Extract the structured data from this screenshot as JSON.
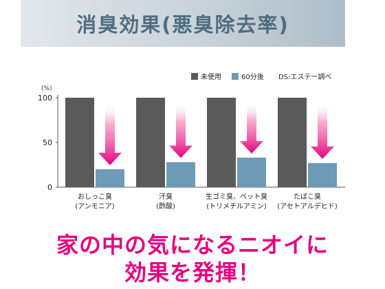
{
  "header": {
    "title": "消臭効果(悪臭除去率)"
  },
  "footer": {
    "line1": "家の中の気になるニオイに",
    "line2": "効果を発揮！"
  },
  "colors": {
    "before": "#5a5a5a",
    "after": "#6e9bb6",
    "arrow": "#e4007f",
    "header_text": "#4f6d80"
  },
  "chart_data": {
    "type": "bar",
    "unit_label": "(%)",
    "ylim": [
      0,
      100
    ],
    "yticks": [
      0,
      50,
      100
    ],
    "grid": false,
    "legend_position": "top-right",
    "note": "DS:エステー調べ",
    "categories": [
      [
        "おしっこ臭",
        "(アンモニア)"
      ],
      [
        "汗臭",
        "(酢酸)"
      ],
      [
        "生ゴミ臭、ペット臭",
        "(トリメチルアミン)"
      ],
      [
        "たばこ臭",
        "(アセトアルデヒド)"
      ]
    ],
    "series": [
      {
        "name": "未使用",
        "values": [
          100,
          100,
          100,
          100
        ]
      },
      {
        "name": "60分後",
        "values": [
          20,
          28,
          33,
          27
        ]
      }
    ]
  }
}
